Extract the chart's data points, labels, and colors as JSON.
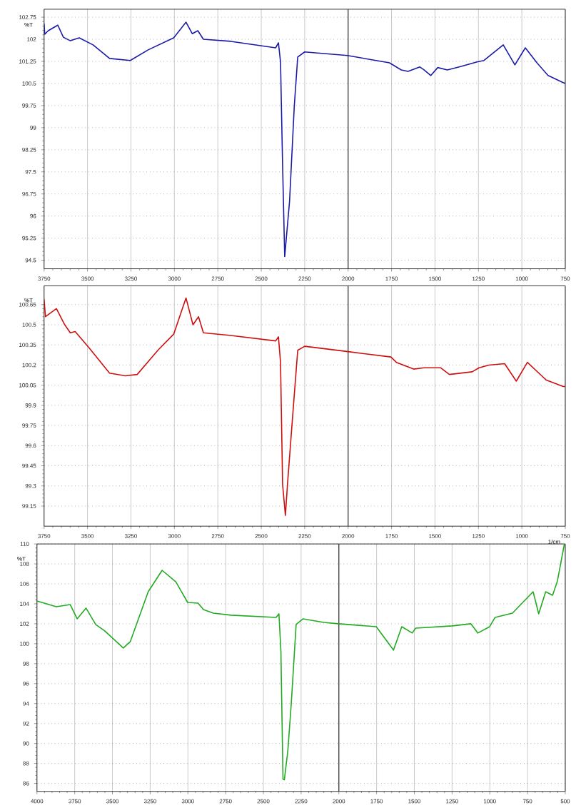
{
  "chart_data": [
    {
      "type": "line",
      "ylabel": "%T",
      "grid": true,
      "x": [
        3750,
        3746,
        3726,
        3671,
        3639,
        3599,
        3548,
        3468,
        3373,
        3254,
        3151,
        3004,
        2933,
        2897,
        2865,
        2833,
        2675,
        2417,
        2401,
        2389,
        2377,
        2365,
        2337,
        2310,
        2290,
        2250,
        2004,
        1762,
        1694,
        1655,
        1587,
        1563,
        1524,
        1484,
        1429,
        1349,
        1258,
        1218,
        1107,
        1040,
        980,
        913,
        849,
        762,
        750
      ],
      "series": [
        {
          "color": "#1a1aa8",
          "values": [
            102.53,
            102.17,
            102.29,
            102.48,
            102.07,
            101.95,
            102.05,
            101.81,
            101.35,
            101.28,
            101.64,
            102.05,
            102.58,
            102.19,
            102.29,
            102.0,
            101.93,
            101.71,
            101.88,
            101.23,
            97.71,
            94.62,
            96.5,
            99.71,
            101.4,
            101.57,
            101.45,
            101.2,
            100.96,
            100.91,
            101.06,
            100.96,
            100.77,
            101.04,
            100.96,
            101.08,
            101.23,
            101.28,
            101.81,
            101.13,
            101.71,
            101.2,
            100.77,
            100.53,
            100.5
          ]
        }
      ],
      "xlim": [
        3750,
        750
      ],
      "ylim": [
        94.21,
        103.02
      ],
      "xticks": [
        3750,
        3500,
        3250,
        3000,
        2750,
        2500,
        2250,
        2000,
        1750,
        1500,
        1250,
        1000,
        750
      ],
      "yticks": [
        94.5,
        95.25,
        96,
        96.75,
        97.5,
        98.25,
        99,
        99.75,
        100.5,
        101.25,
        102,
        102.75
      ],
      "ref_lines": [
        {
          "axis": "x",
          "value": 2000,
          "color": "#333333"
        }
      ]
    },
    {
      "type": "line",
      "ylabel": "%T",
      "xlabel": "1/cm",
      "grid": true,
      "x": [
        3750,
        3742,
        3679,
        3631,
        3599,
        3571,
        3492,
        3373,
        3282,
        3214,
        3095,
        3004,
        2933,
        2893,
        2861,
        2833,
        2675,
        2417,
        2401,
        2389,
        2377,
        2361,
        2349,
        2321,
        2290,
        2250,
        2000,
        1754,
        1722,
        1623,
        1563,
        1468,
        1417,
        1286,
        1246,
        1190,
        1099,
        1032,
        968,
        861,
        762,
        750
      ],
      "series": [
        {
          "color": "#cc1010",
          "values": [
            100.69,
            100.56,
            100.62,
            100.5,
            100.44,
            100.45,
            100.33,
            100.14,
            100.12,
            100.13,
            100.31,
            100.43,
            100.7,
            100.5,
            100.56,
            100.44,
            100.42,
            100.38,
            100.41,
            100.22,
            99.31,
            99.08,
            99.31,
            99.79,
            100.31,
            100.34,
            100.3,
            100.26,
            100.22,
            100.17,
            100.18,
            100.18,
            100.13,
            100.15,
            100.18,
            100.2,
            100.21,
            100.08,
            100.22,
            100.09,
            100.04,
            100.04
          ]
        }
      ],
      "xlim": [
        3750,
        750
      ],
      "ylim": [
        99.0,
        100.79
      ],
      "xticks": [
        3750,
        3500,
        3250,
        3000,
        2750,
        2500,
        2250,
        2000,
        1750,
        1500,
        1250,
        1000,
        750
      ],
      "yticks": [
        99.15,
        99.3,
        99.45,
        99.6,
        99.75,
        99.9,
        100.05,
        100.2,
        100.35,
        100.5,
        100.65
      ],
      "ref_lines": [
        {
          "axis": "x",
          "value": 2000,
          "color": "#333333"
        }
      ]
    },
    {
      "type": "line",
      "ylabel": "%T",
      "grid": true,
      "x": [
        4000,
        3872,
        3780,
        3734,
        3675,
        3611,
        3551,
        3428,
        3382,
        3263,
        3171,
        3080,
        3002,
        2933,
        2897,
        2832,
        2713,
        2416,
        2397,
        2384,
        2370,
        2361,
        2338,
        2315,
        2283,
        2237,
        2100,
        2004,
        1752,
        1638,
        1583,
        1514,
        1491,
        1249,
        1125,
        1079,
        1001,
        965,
        850,
        713,
        676,
        630,
        584,
        552,
        506
      ],
      "series": [
        {
          "color": "#22aa22",
          "values": [
            104.29,
            103.71,
            103.93,
            102.5,
            103.57,
            101.93,
            101.29,
            99.57,
            100.21,
            105.21,
            107.36,
            106.21,
            104.14,
            104.07,
            103.43,
            103.07,
            102.86,
            102.64,
            103.0,
            99.29,
            86.43,
            86.36,
            89.29,
            94.07,
            101.93,
            102.5,
            102.14,
            102.0,
            101.71,
            99.36,
            101.71,
            101.07,
            101.57,
            101.79,
            102.0,
            101.07,
            101.71,
            102.64,
            103.07,
            105.21,
            103.0,
            105.21,
            104.86,
            106.29,
            110.0
          ]
        }
      ],
      "xlim": [
        4000,
        500
      ],
      "ylim": [
        85.2,
        110
      ],
      "xticks": [
        4000,
        3750,
        3500,
        3250,
        3000,
        2750,
        2500,
        2250,
        2000,
        1750,
        1500,
        1250,
        1000,
        750,
        500
      ],
      "yticks": [
        86,
        88,
        90,
        92,
        94,
        96,
        98,
        100,
        102,
        104,
        106,
        108,
        110
      ],
      "ref_lines": [
        {
          "axis": "x",
          "value": 2000,
          "color": "#333333"
        }
      ]
    }
  ]
}
